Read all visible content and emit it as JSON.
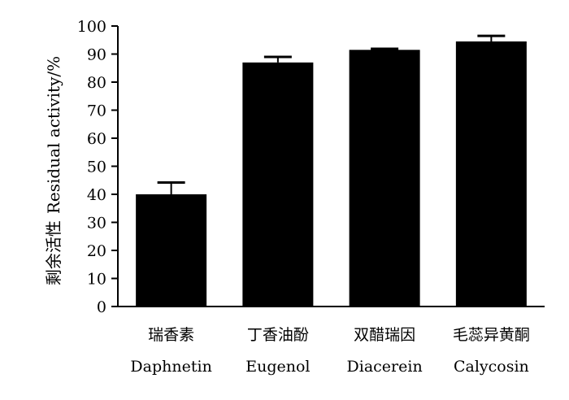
{
  "chart_data": {
    "type": "bar",
    "categories": [
      {
        "cn": "瑞香素",
        "en": "Daphnetin"
      },
      {
        "cn": "丁香油酚",
        "en": "Eugenol"
      },
      {
        "cn": "双醋瑞因",
        "en": "Diacerein"
      },
      {
        "cn": "毛蕊异黄酮",
        "en": "Calycosin"
      }
    ],
    "values": [
      40,
      87,
      91.5,
      94.5
    ],
    "errors": [
      4.2,
      2.0,
      0.4,
      2.0
    ],
    "ylabel_cn": "剩余活性",
    "ylabel_en": "Residual activity/%",
    "ylim": [
      0,
      100
    ],
    "yticks": [
      0,
      10,
      20,
      30,
      40,
      50,
      60,
      70,
      80,
      90,
      100
    ],
    "bar_color": "#000000",
    "grid": false
  }
}
